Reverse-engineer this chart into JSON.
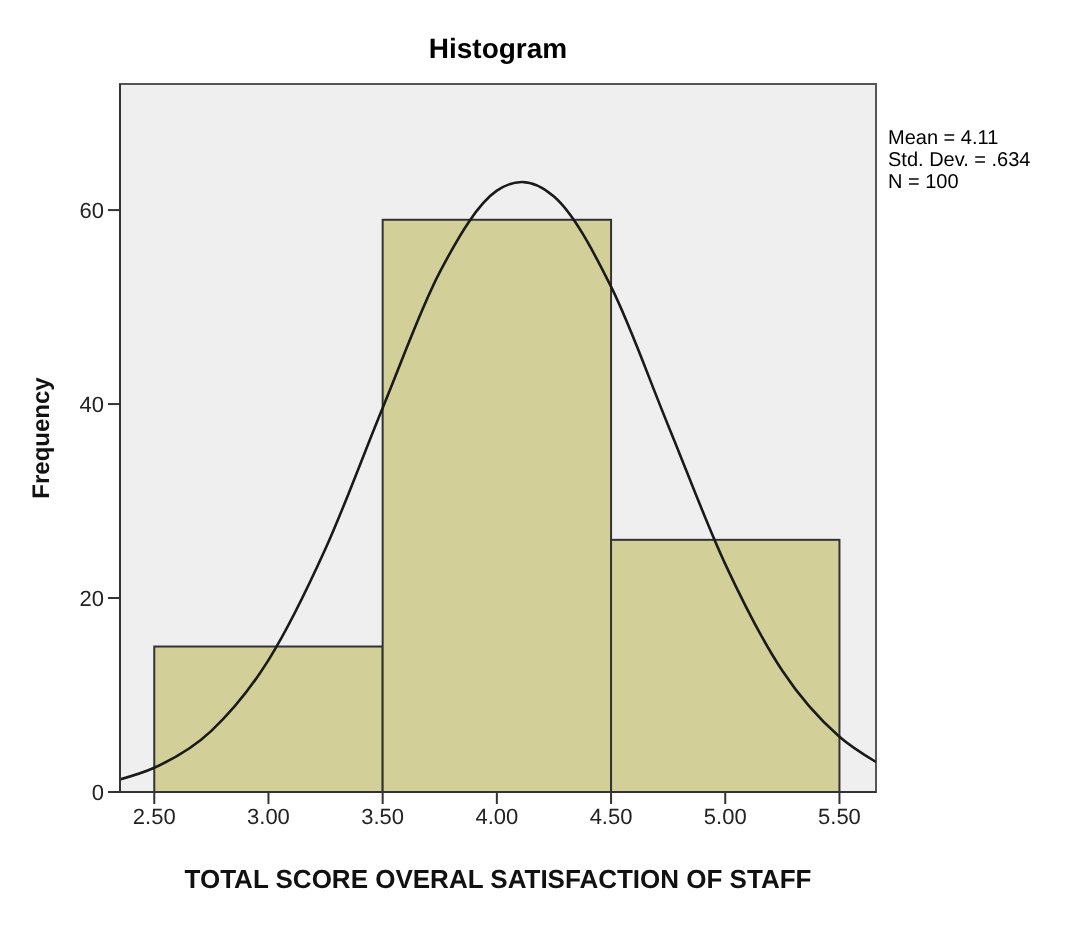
{
  "chart_data": {
    "type": "histogram",
    "title": "Histogram",
    "xlabel": "TOTAL SCORE OVERAL SATISFACTION OF STAFF",
    "ylabel": "Frequency",
    "bins": [
      2.5,
      3.5,
      4.5,
      5.5
    ],
    "values": [
      15,
      59,
      26
    ],
    "color": "#d3cf98",
    "series": [
      {
        "type": "line",
        "color": "#1a1a1a",
        "x": [
          2.35,
          2.5,
          2.75,
          3.0,
          3.25,
          3.5,
          3.75,
          4.0,
          4.11,
          4.25,
          4.5,
          4.75,
          5.0,
          5.25,
          5.5,
          5.66
        ],
        "values": [
          1.3,
          2.5,
          6.3,
          13.6,
          25.1,
          39.6,
          53.6,
          62.0,
          62.9,
          61.4,
          52.1,
          37.8,
          23.5,
          12.5,
          5.7,
          3.1
        ]
      }
    ],
    "marker": "none",
    "xlim": [
      2.35,
      5.66
    ],
    "xticks": [
      {
        "value": 2.5,
        "label": "2.50"
      },
      {
        "value": 3,
        "label": "3.00"
      },
      {
        "value": 3.5,
        "label": "3.50"
      },
      {
        "value": 4,
        "label": "4.00"
      },
      {
        "value": 4.5,
        "label": "4.50"
      },
      {
        "value": 5,
        "label": "5.00"
      },
      {
        "value": 5.5,
        "label": "5.50"
      }
    ],
    "ylim": [
      0,
      73
    ],
    "yticks": [
      0,
      20,
      40,
      60
    ],
    "annotations": [
      "Mean = 4.11",
      "Std. Dev. = .634",
      "N = 100"
    ]
  }
}
